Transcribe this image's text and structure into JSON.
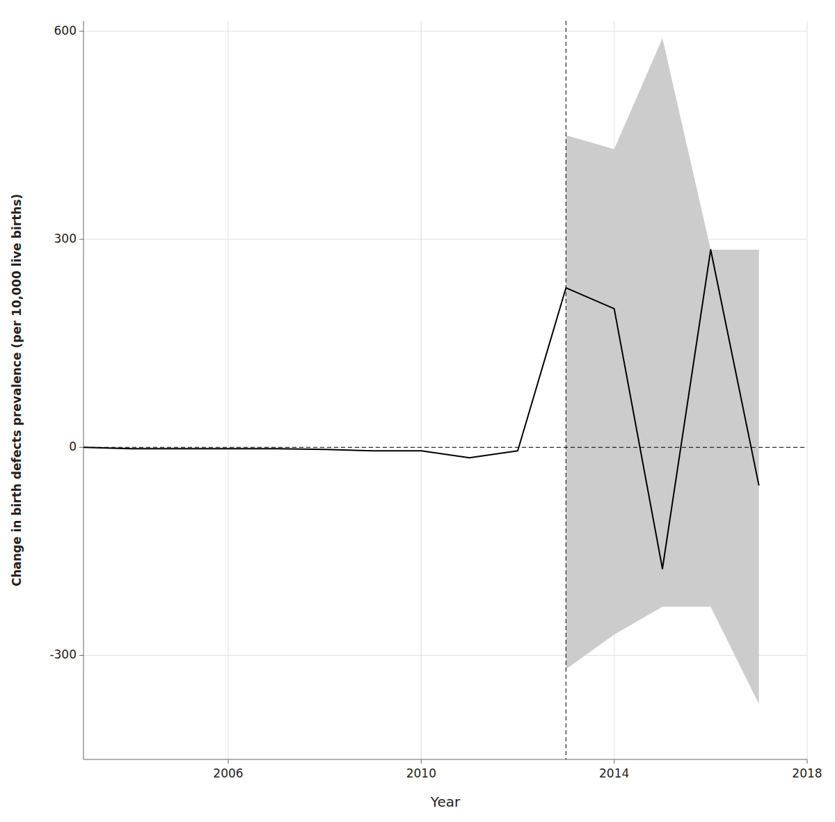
{
  "chart_data": {
    "type": "line",
    "x": [
      2003,
      2004,
      2005,
      2006,
      2007,
      2008,
      2009,
      2010,
      2011,
      2012,
      2013,
      2014,
      2015,
      2016,
      2017
    ],
    "series": [
      {
        "color": "#000000",
        "values": [
          0,
          -2,
          -2,
          -2,
          -2,
          -3,
          -5,
          -5,
          -15,
          -5,
          230,
          200,
          -175,
          285,
          -55
        ],
        "ci_lower": [
          null,
          null,
          null,
          null,
          null,
          null,
          null,
          null,
          null,
          null,
          -320,
          -270,
          -230,
          -230,
          -370
        ],
        "ci_upper": [
          null,
          null,
          null,
          null,
          null,
          null,
          null,
          null,
          null,
          null,
          450,
          430,
          590,
          285,
          285
        ]
      }
    ],
    "vline_x": 2013.0,
    "hline_y": 0,
    "xlim": [
      2003.0,
      2018.0
    ],
    "ylim": [
      -450,
      615
    ],
    "xticks": [
      2006,
      2010,
      2014,
      2018
    ],
    "yticks": [
      -300,
      0,
      300,
      600
    ],
    "xlabel": "Year",
    "ylabel": "Change in birth defects prevalence (per 10,000 live births)",
    "grid": true
  }
}
